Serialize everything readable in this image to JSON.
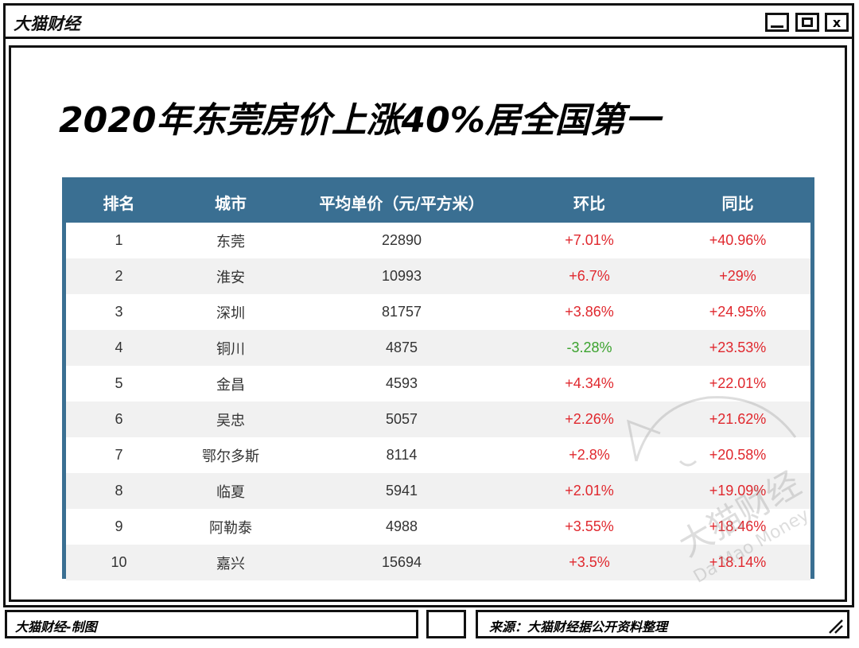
{
  "window": {
    "app_title": "大猫财经",
    "buttons": {
      "minimize": "minimize",
      "maximize": "maximize",
      "close": "x"
    }
  },
  "page": {
    "title": "2020年东莞房价上涨40%居全国第一"
  },
  "table": {
    "headers": [
      "排名",
      "城市",
      "平均单价（元/平方米）",
      "环比",
      "同比"
    ],
    "rows": [
      {
        "rank": "1",
        "city": "东莞",
        "price": "22890",
        "mom": "+7.01%",
        "yoy": "+40.96%"
      },
      {
        "rank": "2",
        "city": "淮安",
        "price": "10993",
        "mom": "+6.7%",
        "yoy": "+29%"
      },
      {
        "rank": "3",
        "city": "深圳",
        "price": "81757",
        "mom": "+3.86%",
        "yoy": "+24.95%"
      },
      {
        "rank": "4",
        "city": "铜川",
        "price": "4875",
        "mom": "-3.28%",
        "yoy": "+23.53%"
      },
      {
        "rank": "5",
        "city": "金昌",
        "price": "4593",
        "mom": "+4.34%",
        "yoy": "+22.01%"
      },
      {
        "rank": "6",
        "city": "吴忠",
        "price": "5057",
        "mom": "+2.26%",
        "yoy": "+21.62%"
      },
      {
        "rank": "7",
        "city": "鄂尔多斯",
        "price": "8114",
        "mom": "+2.8%",
        "yoy": "+20.58%"
      },
      {
        "rank": "8",
        "city": "临夏",
        "price": "5941",
        "mom": "+2.01%",
        "yoy": "+19.09%"
      },
      {
        "rank": "9",
        "city": "阿勒泰",
        "price": "4988",
        "mom": "+3.55%",
        "yoy": "+18.46%"
      },
      {
        "rank": "10",
        "city": "嘉兴",
        "price": "15694",
        "mom": "+3.5%",
        "yoy": "+18.14%"
      }
    ],
    "colors": {
      "header_bg": "#3a6f92",
      "positive": "#e0282e",
      "negative": "#3aa22d",
      "stripe": "#f1f1f1"
    }
  },
  "watermark": {
    "cn": "大猫财经",
    "en": "Da Mao Money"
  },
  "footer": {
    "left": "大猫财经-制图",
    "right": "来源：大猫财经据公开资料整理"
  }
}
